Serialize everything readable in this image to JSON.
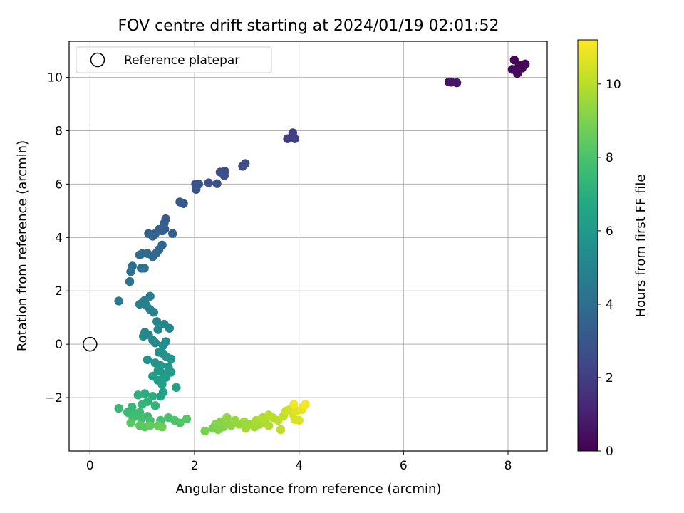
{
  "chart_data": {
    "type": "scatter",
    "title": "FOV centre drift starting at 2024/01/19 02:01:52",
    "xlabel": "Angular distance from reference (arcmin)",
    "ylabel": "Rotation from reference (arcmin)",
    "xlim": [
      -0.4,
      8.75
    ],
    "ylim": [
      -4.0,
      11.35
    ],
    "xticks": [
      0,
      2,
      4,
      6,
      8
    ],
    "yticks": [
      -2,
      0,
      2,
      4,
      6,
      8,
      10
    ],
    "xtick_labels": [
      "0",
      "2",
      "4",
      "6",
      "8"
    ],
    "ytick_labels": [
      "−2",
      "0",
      "2",
      "4",
      "6",
      "8",
      "10"
    ],
    "grid": true,
    "legend": {
      "position": "upper-left",
      "entries": [
        "Reference platepar"
      ]
    },
    "reference_point": {
      "x": 0,
      "y": 0,
      "label": "Reference platepar"
    },
    "colorbar": {
      "label": "Hours from first FF file",
      "range": [
        0,
        11.2
      ],
      "ticks": [
        0,
        2,
        4,
        6,
        8,
        10
      ],
      "tick_labels": [
        "0",
        "2",
        "4",
        "6",
        "8",
        "10"
      ],
      "colormap": "viridis"
    },
    "points": [
      [
        8.12,
        10.65,
        0.05
      ],
      [
        8.22,
        10.45,
        0.1
      ],
      [
        8.33,
        10.5,
        0.15
      ],
      [
        8.27,
        10.35,
        0.2
      ],
      [
        8.08,
        10.3,
        0.25
      ],
      [
        8.18,
        10.15,
        0.3
      ],
      [
        8.15,
        10.3,
        0.35
      ],
      [
        6.87,
        9.83,
        0.6
      ],
      [
        6.92,
        9.82,
        0.65
      ],
      [
        7.02,
        9.8,
        0.7
      ],
      [
        3.88,
        7.92,
        2.0
      ],
      [
        3.78,
        7.7,
        2.05
      ],
      [
        3.92,
        7.7,
        2.1
      ],
      [
        2.97,
        6.77,
        2.5
      ],
      [
        2.92,
        6.67,
        2.55
      ],
      [
        2.58,
        6.48,
        2.6
      ],
      [
        2.49,
        6.45,
        2.65
      ],
      [
        2.57,
        6.32,
        2.7
      ],
      [
        2.43,
        6.02,
        2.75
      ],
      [
        2.27,
        6.05,
        2.8
      ],
      [
        2.02,
        6.0,
        2.9
      ],
      [
        2.08,
        6.0,
        2.95
      ],
      [
        2.03,
        5.8,
        3.0
      ],
      [
        1.72,
        5.33,
        3.1
      ],
      [
        1.79,
        5.27,
        3.15
      ],
      [
        1.45,
        4.7,
        3.2
      ],
      [
        1.42,
        4.53,
        3.25
      ],
      [
        1.58,
        4.15,
        3.3
      ],
      [
        1.43,
        4.32,
        3.35
      ],
      [
        1.38,
        4.25,
        3.4
      ],
      [
        1.32,
        4.3,
        3.45
      ],
      [
        1.25,
        4.15,
        3.5
      ],
      [
        1.12,
        4.15,
        3.55
      ],
      [
        1.2,
        4.05,
        3.6
      ],
      [
        1.38,
        3.72,
        3.65
      ],
      [
        1.32,
        3.55,
        3.7
      ],
      [
        1.27,
        3.42,
        3.75
      ],
      [
        1.2,
        3.28,
        3.8
      ],
      [
        1.1,
        3.4,
        3.85
      ],
      [
        1.0,
        3.4,
        3.9
      ],
      [
        0.95,
        3.35,
        3.95
      ],
      [
        0.81,
        2.93,
        4.0
      ],
      [
        0.98,
        2.85,
        4.05
      ],
      [
        1.04,
        2.85,
        4.1
      ],
      [
        0.78,
        2.72,
        4.15
      ],
      [
        0.76,
        2.35,
        4.2
      ],
      [
        0.55,
        1.62,
        4.6
      ],
      [
        1.15,
        1.8,
        4.65
      ],
      [
        1.05,
        1.65,
        4.7
      ],
      [
        1.02,
        1.6,
        4.75
      ],
      [
        0.95,
        1.5,
        4.8
      ],
      [
        1.08,
        1.45,
        4.85
      ],
      [
        1.15,
        1.3,
        4.9
      ],
      [
        1.22,
        1.2,
        4.95
      ],
      [
        1.28,
        0.85,
        5.0
      ],
      [
        1.42,
        0.75,
        5.05
      ],
      [
        1.52,
        0.6,
        5.1
      ],
      [
        1.3,
        0.55,
        5.15
      ],
      [
        1.05,
        0.45,
        5.2
      ],
      [
        1.12,
        0.35,
        5.25
      ],
      [
        1.02,
        0.3,
        5.3
      ],
      [
        1.2,
        0.15,
        5.35
      ],
      [
        1.25,
        0.05,
        5.4
      ],
      [
        1.45,
        0.1,
        5.45
      ],
      [
        1.4,
        -0.05,
        5.5
      ],
      [
        1.32,
        -0.3,
        5.6
      ],
      [
        1.4,
        -0.35,
        5.65
      ],
      [
        1.45,
        -0.45,
        5.7
      ],
      [
        1.1,
        -0.58,
        5.75
      ],
      [
        1.55,
        -0.55,
        5.8
      ],
      [
        1.25,
        -0.7,
        5.85
      ],
      [
        1.35,
        -0.8,
        5.9
      ],
      [
        1.5,
        -0.85,
        5.95
      ],
      [
        1.3,
        -1.0,
        6.0
      ],
      [
        1.4,
        -1.1,
        6.05
      ],
      [
        1.55,
        -1.05,
        6.1
      ],
      [
        1.2,
        -1.2,
        6.15
      ],
      [
        1.45,
        -1.25,
        6.2
      ],
      [
        1.3,
        -1.35,
        6.25
      ],
      [
        1.38,
        -1.5,
        6.3
      ],
      [
        1.65,
        -1.62,
        6.35
      ],
      [
        1.4,
        -1.8,
        6.4
      ],
      [
        1.35,
        -1.95,
        6.5
      ],
      [
        1.05,
        -1.85,
        6.9
      ],
      [
        1.2,
        -1.95,
        7.0
      ],
      [
        0.92,
        -1.9,
        7.1
      ],
      [
        1.1,
        -2.15,
        7.2
      ],
      [
        1.25,
        -2.3,
        7.3
      ],
      [
        1.0,
        -2.25,
        7.35
      ],
      [
        0.8,
        -2.35,
        7.4
      ],
      [
        0.55,
        -2.4,
        7.5
      ],
      [
        0.72,
        -2.55,
        7.55
      ],
      [
        0.88,
        -2.6,
        7.6
      ],
      [
        0.95,
        -2.55,
        7.65
      ],
      [
        1.1,
        -2.7,
        7.7
      ],
      [
        0.82,
        -2.75,
        7.75
      ],
      [
        0.98,
        -2.8,
        7.8
      ],
      [
        1.15,
        -2.85,
        7.85
      ],
      [
        1.35,
        -2.85,
        7.9
      ],
      [
        1.5,
        -2.75,
        7.95
      ],
      [
        1.62,
        -2.85,
        8.0
      ],
      [
        1.72,
        -2.95,
        8.1
      ],
      [
        1.85,
        -2.8,
        8.2
      ],
      [
        0.78,
        -2.95,
        8.3
      ],
      [
        0.95,
        -3.05,
        8.35
      ],
      [
        1.05,
        -3.1,
        8.4
      ],
      [
        1.15,
        -3.05,
        8.5
      ],
      [
        1.3,
        -3.05,
        8.6
      ],
      [
        1.38,
        -3.1,
        8.7
      ],
      [
        2.2,
        -3.25,
        8.9
      ],
      [
        2.35,
        -3.15,
        9.0
      ],
      [
        2.45,
        -3.2,
        9.05
      ],
      [
        2.55,
        -3.1,
        9.1
      ],
      [
        2.4,
        -3.0,
        9.15
      ],
      [
        2.5,
        -2.9,
        9.2
      ],
      [
        2.62,
        -2.95,
        9.25
      ],
      [
        2.7,
        -3.05,
        9.3
      ],
      [
        2.62,
        -2.75,
        9.35
      ],
      [
        2.78,
        -2.85,
        9.4
      ],
      [
        2.85,
        -3.0,
        9.45
      ],
      [
        2.95,
        -2.9,
        9.5
      ],
      [
        3.05,
        -3.0,
        9.55
      ],
      [
        2.98,
        -3.15,
        9.6
      ],
      [
        3.15,
        -3.1,
        9.65
      ],
      [
        3.25,
        -3.0,
        9.7
      ],
      [
        3.18,
        -2.85,
        9.75
      ],
      [
        3.35,
        -2.9,
        9.8
      ],
      [
        3.42,
        -3.05,
        9.85
      ],
      [
        3.3,
        -2.75,
        9.9
      ],
      [
        3.42,
        -2.65,
        9.95
      ],
      [
        3.5,
        -2.75,
        10.0
      ],
      [
        3.6,
        -2.85,
        10.05
      ],
      [
        3.65,
        -3.2,
        10.1
      ],
      [
        3.7,
        -2.7,
        10.2
      ],
      [
        3.75,
        -2.5,
        10.3
      ],
      [
        3.82,
        -2.45,
        10.4
      ],
      [
        3.88,
        -2.6,
        10.5
      ],
      [
        3.92,
        -2.82,
        10.55
      ],
      [
        4.0,
        -2.85,
        10.6
      ],
      [
        3.95,
        -2.5,
        10.7
      ],
      [
        4.05,
        -2.45,
        10.8
      ],
      [
        4.08,
        -2.35,
        10.9
      ],
      [
        3.9,
        -2.25,
        11.0
      ],
      [
        4.12,
        -2.25,
        11.1
      ]
    ]
  }
}
